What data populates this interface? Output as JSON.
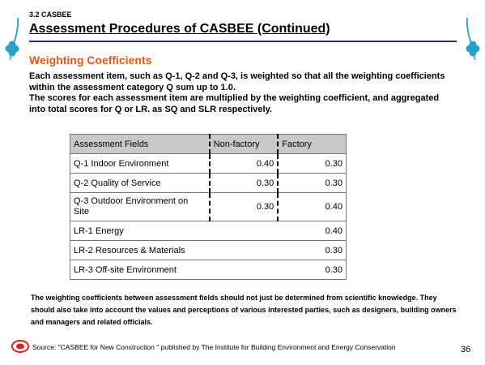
{
  "header": {
    "section": "3.2 CASBEE",
    "title": "Assessment Procedures of CASBEE (Continued)"
  },
  "subheading": "Weighting Coefficients",
  "intro": [
    "Each assessment item, such as Q-1, Q-2 and Q-3, is weighted so that all the weighting coefficients within the assessment category Q sum up to 1.0.",
    "The scores for each assessment item are multiplied by the weighting coefficient, and aggregated into total scores for Q or LR. as SQ and SLR respectively."
  ],
  "table": {
    "headers": [
      "Assessment Fields",
      "Non-factory",
      "Factory"
    ],
    "rows": [
      {
        "field": "Q-1 Indoor Environment",
        "non_factory": "0.40",
        "factory": "0.30"
      },
      {
        "field": "Q-2 Quality of Service",
        "non_factory": "0.30",
        "factory": "0.30"
      },
      {
        "field": "Q-3 Outdoor Environment on Site",
        "non_factory": "0.30",
        "factory": "0.40"
      },
      {
        "field": "LR-1 Energy",
        "non_factory": "",
        "factory": "0.40"
      },
      {
        "field": "LR-2 Resources & Materials",
        "non_factory": "",
        "factory": "0.30"
      },
      {
        "field": "LR-3 Off-site Environment",
        "non_factory": "",
        "factory": "0.30"
      }
    ]
  },
  "note": "The weighting coefficients between assessment fields should not just be determined from scientific knowledge. They should also take into account the values and perceptions of various interested parties, such as designers, building owners and managers and related officials.",
  "footer": {
    "source": "Source: \"CASBEE for New Construction \" published by The  Institute for Building Environment and Energy Conservation",
    "page": "36"
  },
  "colors": {
    "subheading": "#e8561a",
    "clover": "#2aa0c8",
    "table_header": "#c9c9c9",
    "title_rule": "#2a2a8a"
  },
  "icons": [
    "clover-icon",
    "logo-icon"
  ]
}
